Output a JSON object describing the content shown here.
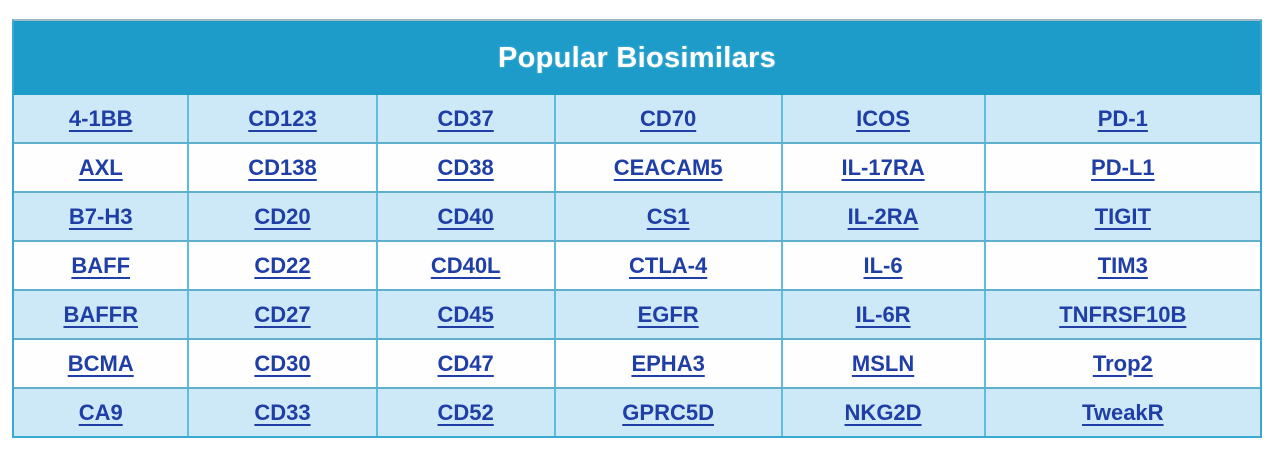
{
  "title": "Popular Biosimilars",
  "colors": {
    "header_bg": "#1d9cca",
    "title_text": "#ffffff",
    "odd_row_bg": "#cde9f8",
    "even_row_bg": "#fefefe",
    "link": "#1f3ea6",
    "border_inner": "#5cbedc",
    "border_outer": "#3aa9cf"
  },
  "table": {
    "columns": 6,
    "rows": [
      [
        "4-1BB",
        "CD123",
        "CD37",
        "CD70",
        "ICOS",
        "PD-1"
      ],
      [
        "AXL",
        "CD138",
        "CD38",
        "CEACAM5",
        "IL-17RA",
        "PD-L1"
      ],
      [
        "B7-H3",
        "CD20",
        "CD40",
        "CS1",
        "IL-2RA",
        "TIGIT"
      ],
      [
        "BAFF",
        "CD22",
        "CD40L",
        "CTLA-4",
        "IL-6",
        "TIM3"
      ],
      [
        "BAFFR",
        "CD27",
        "CD45",
        "EGFR",
        "IL-6R",
        "TNFRSF10B"
      ],
      [
        "BCMA",
        "CD30",
        "CD47",
        "EPHA3",
        "MSLN",
        "Trop2"
      ],
      [
        "CA9",
        "CD33",
        "CD52",
        "GPRC5D",
        "NKG2D",
        "TweakR"
      ]
    ]
  }
}
